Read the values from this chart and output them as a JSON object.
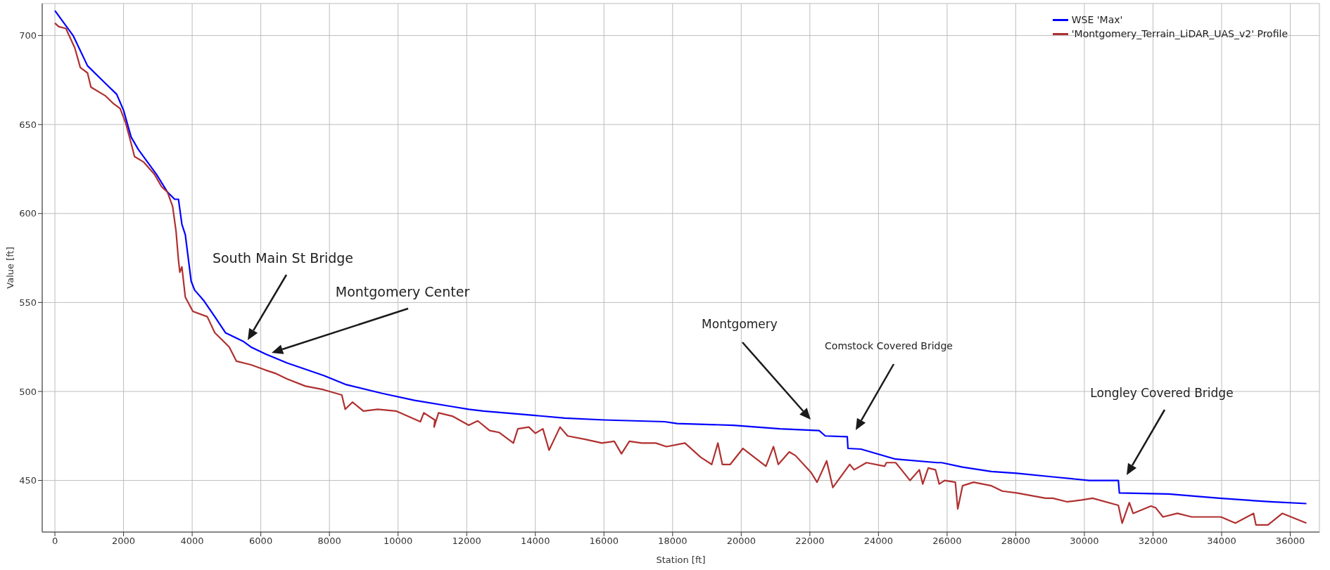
{
  "chart_data": {
    "type": "line",
    "xlabel": "Station [ft]",
    "ylabel": "Value [ft]",
    "xlim": [
      -370,
      36850
    ],
    "ylim": [
      421,
      718
    ],
    "xticks": [
      0,
      2000,
      4000,
      6000,
      8000,
      10000,
      12000,
      14000,
      16000,
      18000,
      20000,
      22000,
      24000,
      26000,
      28000,
      30000,
      32000,
      34000,
      36000
    ],
    "yticks": [
      450,
      500,
      550,
      600,
      650,
      700
    ],
    "grid": true,
    "legend": "top right",
    "marker": "none",
    "line_style": "solid",
    "series": [
      {
        "name": "WSE 'Max'",
        "color": "#0000ff",
        "x": [
          0,
          530,
          950,
          1480,
          1800,
          2000,
          2220,
          2430,
          2960,
          3280,
          3490,
          3600,
          3700,
          3800,
          3970,
          4070,
          4340,
          4660,
          4970,
          5500,
          5710,
          6140,
          6770,
          7830,
          8460,
          9520,
          10480,
          11580,
          12060,
          12490,
          14000,
          14860,
          16000,
          17770,
          18130,
          19770,
          21130,
          22270,
          22450,
          23090,
          23110,
          23490,
          24490,
          25710,
          25840,
          26450,
          27290,
          28030,
          29080,
          30140,
          30990,
          31020,
          32460,
          33940,
          35420,
          36470
        ],
        "values": [
          714,
          700,
          683,
          673,
          667,
          658,
          643,
          636,
          622,
          612,
          608,
          608,
          594,
          588,
          562,
          557,
          551,
          542,
          533,
          528,
          525,
          521,
          516,
          509,
          504,
          499,
          495,
          491.5,
          490,
          489,
          486.5,
          485,
          484,
          483,
          482,
          481,
          479,
          478,
          475,
          474.6,
          468,
          467.6,
          462,
          460,
          460,
          457.5,
          455,
          454,
          452,
          450,
          450,
          443,
          442.4,
          440,
          438,
          437
        ]
      },
      {
        "name": "'Montgomery_Terrain_LiDAR_UAS_v2' Profile",
        "color": "#b03030",
        "x": [
          0,
          110,
          320,
          580,
          740,
          950,
          1050,
          1480,
          1690,
          1900,
          2060,
          2200,
          2320,
          2580,
          2900,
          3110,
          3280,
          3430,
          3530,
          3600,
          3640,
          3700,
          3800,
          4020,
          4440,
          4660,
          4870,
          5080,
          5290,
          5710,
          6140,
          6450,
          6770,
          7300,
          7830,
          8360,
          8460,
          8670,
          8990,
          9410,
          9940,
          10650,
          10750,
          11070,
          11050,
          11180,
          11600,
          12060,
          12320,
          12670,
          12940,
          13360,
          13490,
          13810,
          14000,
          14220,
          14400,
          14720,
          14940,
          15480,
          15940,
          16300,
          16510,
          16740,
          17100,
          17510,
          17820,
          18360,
          18820,
          19140,
          19320,
          19450,
          19680,
          20050,
          20180,
          20720,
          20940,
          21080,
          21400,
          21580,
          22030,
          22210,
          22490,
          22670,
          23160,
          23290,
          23650,
          24180,
          24230,
          24500,
          24670,
          24920,
          25190,
          25290,
          25450,
          25660,
          25770,
          25930,
          26240,
          26310,
          26450,
          26770,
          27290,
          27610,
          28030,
          28870,
          29080,
          29500,
          29920,
          30240,
          30990,
          31100,
          31310,
          31420,
          31940,
          32080,
          32290,
          32710,
          33130,
          33980,
          34400,
          34930,
          35000,
          35350,
          35770,
          36470
        ],
        "values": [
          707,
          705,
          704,
          693,
          682,
          679,
          671,
          666,
          662,
          659,
          651,
          641,
          632,
          629,
          622,
          615,
          612,
          604,
          590,
          574,
          567,
          570,
          553,
          545,
          542,
          533,
          529,
          525,
          517,
          515,
          512,
          510,
          507,
          503,
          501,
          498,
          490,
          494,
          489,
          490,
          489,
          483,
          488,
          484,
          480,
          488,
          486,
          481,
          483.5,
          478,
          477,
          471,
          479,
          480,
          476.5,
          479,
          467,
          480,
          475,
          473,
          471,
          472,
          465,
          472,
          471,
          471,
          469,
          471,
          463,
          459,
          471,
          459,
          459,
          468,
          466,
          458,
          469,
          459,
          466,
          464,
          454.6,
          449,
          461,
          446,
          459,
          456,
          460,
          458,
          460,
          460,
          456,
          450,
          456,
          448,
          457,
          456,
          448,
          450,
          449,
          434,
          447,
          449,
          447,
          444,
          443,
          440,
          440,
          438,
          439,
          440,
          436,
          426,
          437.5,
          431.5,
          435.6,
          434.6,
          429.5,
          431.5,
          429.5,
          429.5,
          426,
          431.5,
          425,
          425,
          431.5,
          426
        ]
      }
    ],
    "annotations": [
      "South Main St Bridge",
      "Montgomery Center",
      "Montgomery",
      "Comstock Covered Bridge",
      "Longley Covered Bridge"
    ]
  }
}
